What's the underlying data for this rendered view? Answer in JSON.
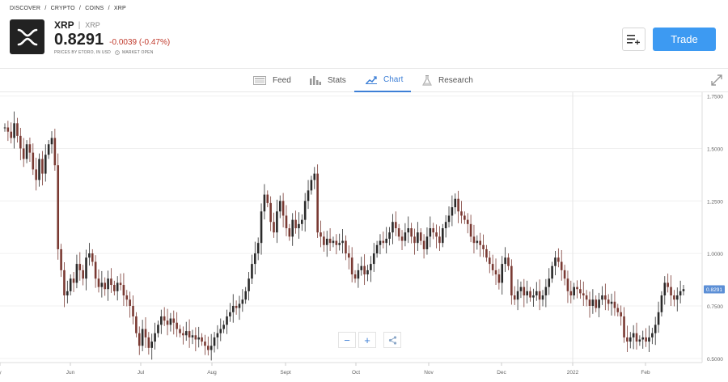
{
  "breadcrumb": [
    "DISCOVER",
    "/",
    "CRYPTO",
    "/",
    "COINS",
    "/",
    "XRP"
  ],
  "instrument": {
    "name": "XRP",
    "separator": "|",
    "symbol": "XRP",
    "price": "0.8291",
    "change": "-0.0039 (-0.47%)",
    "source": "PRICES BY ETORO, IN USD",
    "market_status": "MARKET OPEN"
  },
  "actions": {
    "trade_label": "Trade"
  },
  "tabs": [
    {
      "label": "Feed",
      "icon": "feed-icon"
    },
    {
      "label": "Stats",
      "icon": "stats-icon"
    },
    {
      "label": "Chart",
      "icon": "chart-icon",
      "active": true
    },
    {
      "label": "Research",
      "icon": "flask-icon"
    }
  ],
  "zoom": {
    "minus": "−",
    "plus": "+"
  },
  "colors": {
    "up": "#2a2a2a",
    "down": "#7a3a33",
    "accent": "#3d7fd6",
    "trade": "#3d9af2",
    "change": "#c0392b"
  },
  "chart_data": {
    "type": "candlestick",
    "x_ticks": [
      "y",
      "Jun",
      "Jul",
      "Aug",
      "Sept",
      "Oct",
      "Nov",
      "Dec",
      "2022",
      "Feb"
    ],
    "y_ticks": [
      "1.7500",
      "1.5000",
      "1.2500",
      "1.0000",
      "0.7500",
      "0.5000"
    ],
    "ylim": [
      0.48,
      1.76
    ],
    "last_price": 0.8291,
    "last_price_label": "0.8291",
    "grid": true,
    "close_series": [
      1.6,
      1.58,
      1.55,
      1.62,
      1.56,
      1.5,
      1.45,
      1.52,
      1.48,
      1.4,
      1.35,
      1.45,
      1.38,
      1.47,
      1.52,
      1.55,
      1.42,
      1.02,
      0.92,
      0.8,
      0.82,
      0.88,
      0.86,
      0.95,
      0.92,
      0.88,
      0.98,
      1.0,
      0.96,
      0.88,
      0.84,
      0.86,
      0.83,
      0.88,
      0.85,
      0.82,
      0.86,
      0.85,
      0.8,
      0.78,
      0.75,
      0.7,
      0.62,
      0.56,
      0.64,
      0.6,
      0.55,
      0.58,
      0.62,
      0.66,
      0.7,
      0.68,
      0.66,
      0.69,
      0.67,
      0.64,
      0.62,
      0.61,
      0.63,
      0.6,
      0.61,
      0.59,
      0.6,
      0.58,
      0.56,
      0.54,
      0.56,
      0.6,
      0.62,
      0.64,
      0.66,
      0.7,
      0.72,
      0.75,
      0.74,
      0.76,
      0.78,
      0.82,
      0.88,
      0.95,
      1.0,
      1.05,
      1.2,
      1.28,
      1.24,
      1.15,
      1.1,
      1.2,
      1.25,
      1.18,
      1.12,
      1.08,
      1.16,
      1.12,
      1.14,
      1.16,
      1.25,
      1.3,
      1.35,
      1.38,
      1.1,
      1.08,
      1.04,
      1.07,
      1.05,
      1.06,
      1.04,
      1.05,
      1.06,
      1.0,
      0.98,
      0.9,
      0.88,
      0.92,
      0.94,
      0.9,
      0.92,
      0.95,
      1.0,
      1.04,
      1.06,
      1.05,
      1.07,
      1.1,
      1.15,
      1.12,
      1.08,
      1.06,
      1.1,
      1.12,
      1.08,
      1.05,
      1.1,
      1.06,
      1.02,
      1.08,
      1.12,
      1.1,
      1.08,
      1.05,
      1.12,
      1.15,
      1.18,
      1.22,
      1.26,
      1.2,
      1.18,
      1.16,
      1.14,
      1.08,
      1.05,
      1.06,
      1.04,
      1.02,
      0.98,
      0.95,
      0.92,
      0.9,
      0.86,
      0.95,
      0.98,
      0.94,
      0.8,
      0.78,
      0.82,
      0.84,
      0.8,
      0.82,
      0.79,
      0.8,
      0.82,
      0.78,
      0.8,
      0.84,
      0.88,
      0.94,
      0.98,
      0.96,
      0.92,
      0.88,
      0.82,
      0.8,
      0.84,
      0.83,
      0.81,
      0.8,
      0.78,
      0.75,
      0.78,
      0.74,
      0.78,
      0.8,
      0.78,
      0.76,
      0.77,
      0.74,
      0.72,
      0.7,
      0.6,
      0.58,
      0.6,
      0.62,
      0.58,
      0.59,
      0.6,
      0.58,
      0.6,
      0.62,
      0.66,
      0.72,
      0.8,
      0.86,
      0.84,
      0.8,
      0.78,
      0.8,
      0.82,
      0.83
    ]
  }
}
